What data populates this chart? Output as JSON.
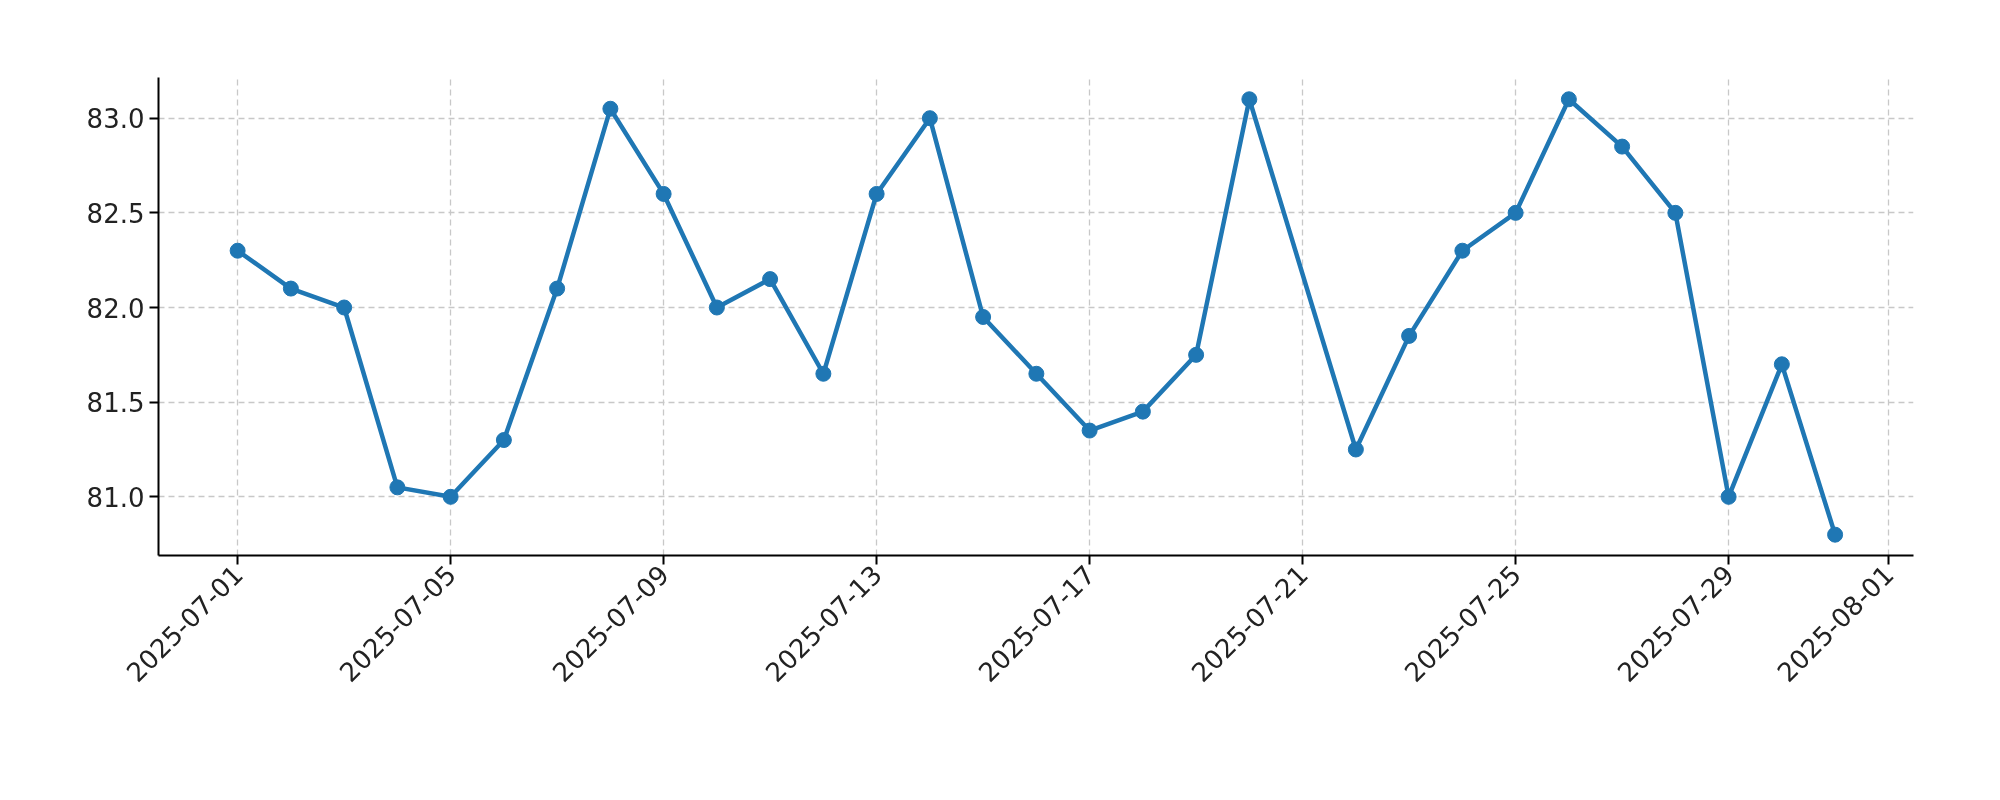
{
  "chart_data": {
    "type": "line",
    "x": [
      "2025-07-01",
      "2025-07-02",
      "2025-07-03",
      "2025-07-04",
      "2025-07-05",
      "2025-07-06",
      "2025-07-07",
      "2025-07-08",
      "2025-07-09",
      "2025-07-10",
      "2025-07-11",
      "2025-07-12",
      "2025-07-13",
      "2025-07-14",
      "2025-07-15",
      "2025-07-16",
      "2025-07-17",
      "2025-07-18",
      "2025-07-19",
      "2025-07-20",
      "2025-07-22",
      "2025-07-23",
      "2025-07-24",
      "2025-07-25",
      "2025-07-26",
      "2025-07-27",
      "2025-07-28",
      "2025-07-29",
      "2025-07-30",
      "2025-07-31"
    ],
    "series": [
      {
        "color": "#1f77b4",
        "values": [
          82.3,
          82.1,
          82.0,
          81.05,
          81.0,
          81.3,
          82.1,
          83.05,
          82.6,
          82.0,
          82.15,
          81.65,
          82.6,
          83.0,
          81.95,
          81.65,
          81.35,
          81.45,
          81.75,
          83.1,
          81.25,
          81.85,
          82.3,
          82.5,
          83.1,
          82.85,
          82.5,
          81.0,
          81.7,
          80.8
        ]
      }
    ],
    "xlim": [
      "2025-06-29T12:20",
      "2025-08-01T11:20"
    ],
    "xticks": [
      "2025-07-01",
      "2025-07-05",
      "2025-07-09",
      "2025-07-13",
      "2025-07-17",
      "2025-07-21",
      "2025-07-25",
      "2025-07-29",
      "2025-08-01"
    ],
    "ylim": [
      80.69,
      83.215
    ],
    "yticks": [
      {
        "value": 81.0,
        "label": "81.0"
      },
      {
        "value": 81.5,
        "label": "81.5"
      },
      {
        "value": 82.0,
        "label": "82.0"
      },
      {
        "value": 82.5,
        "label": "82.5"
      },
      {
        "value": 83.0,
        "label": "83.0"
      }
    ],
    "grid": true,
    "marker": "circle",
    "line_style": "solid"
  }
}
